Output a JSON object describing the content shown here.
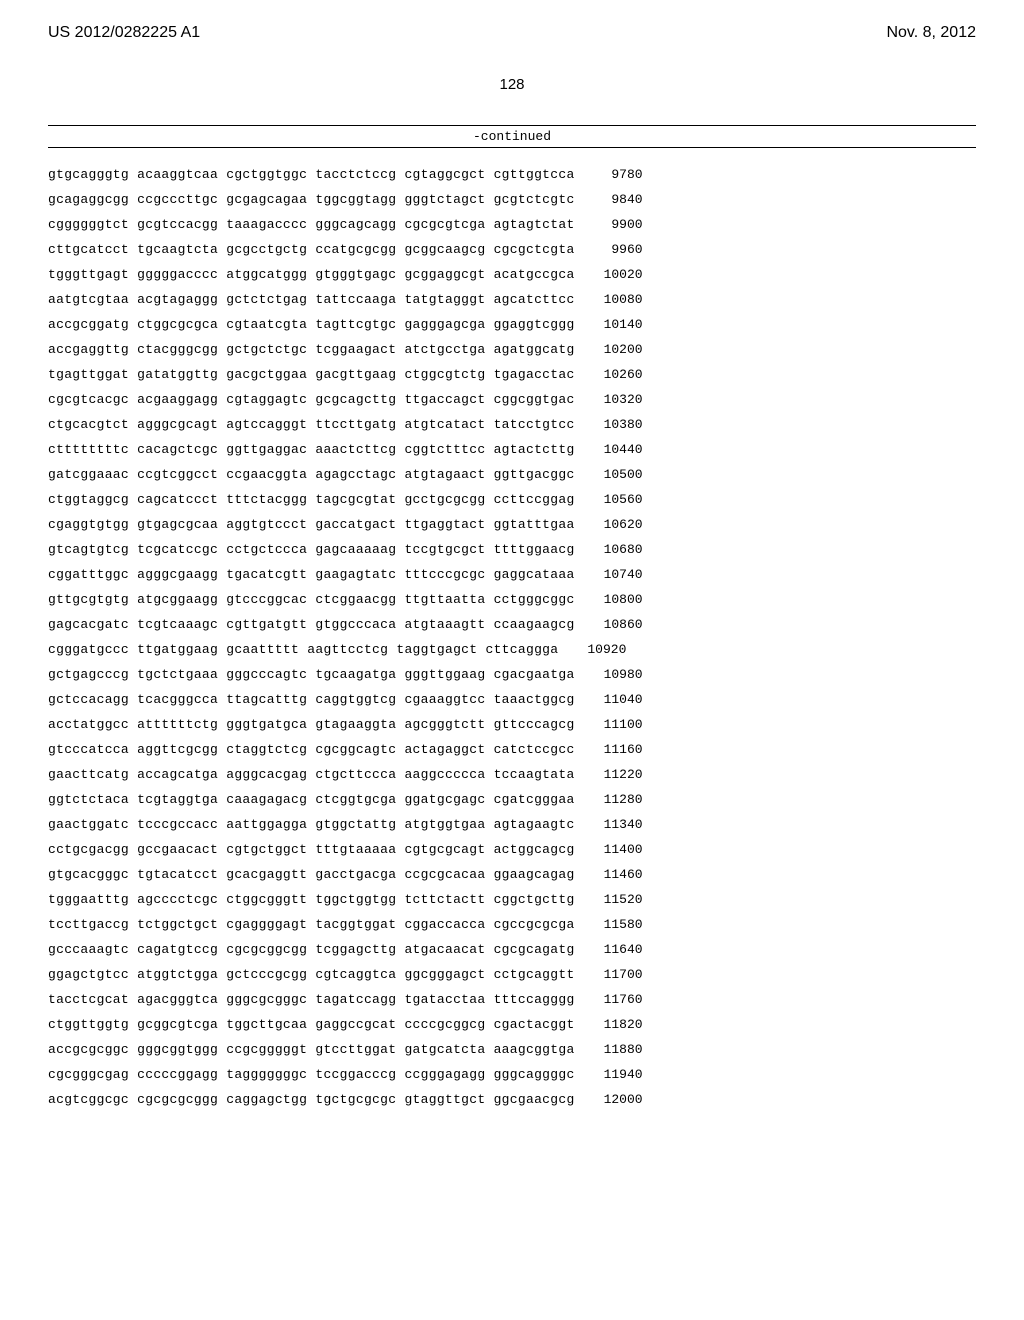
{
  "header": {
    "patent_number": "US 2012/0282225 A1",
    "patent_date": "Nov. 8, 2012"
  },
  "page_number": "128",
  "continued_label": "-continued",
  "colors": {
    "background": "#ffffff",
    "text": "#000000",
    "rule": "#000000"
  },
  "typography": {
    "header_font": "Arial, Helvetica, sans-serif",
    "header_fontsize": 16,
    "page_number_fontsize": 15,
    "sequence_font": "Courier New, Courier, monospace",
    "sequence_fontsize": 13,
    "continued_fontsize": 13
  },
  "sequence": {
    "block_count_per_row": 6,
    "block_length": 10,
    "rows": [
      {
        "blocks": [
          "gtgcagggtg",
          "acaaggtcaa",
          "cgctggtggc",
          "tacctctccg",
          "cgtaggcgct",
          "cgttggtcca"
        ],
        "pos": "9780"
      },
      {
        "blocks": [
          "gcagaggcgg",
          "ccgcccttgc",
          "gcgagcagaa",
          "tggcggtagg",
          "gggtctagct",
          "gcgtctcgtc"
        ],
        "pos": "9840"
      },
      {
        "blocks": [
          "cggggggtct",
          "gcgtccacgg",
          "taaagacccc",
          "gggcagcagg",
          "cgcgcgtcga",
          "agtagtctat"
        ],
        "pos": "9900"
      },
      {
        "blocks": [
          "cttgcatcct",
          "tgcaagtcta",
          "gcgcctgctg",
          "ccatgcgcgg",
          "gcggcaagcg",
          "cgcgctcgta"
        ],
        "pos": "9960"
      },
      {
        "blocks": [
          "tgggttgagt",
          "gggggacccc",
          "atggcatggg",
          "gtgggtgagc",
          "gcggaggcgt",
          "acatgccgca"
        ],
        "pos": "10020"
      },
      {
        "blocks": [
          "aatgtcgtaa",
          "acgtagaggg",
          "gctctctgag",
          "tattccaaga",
          "tatgtagggt",
          "agcatcttcc"
        ],
        "pos": "10080"
      },
      {
        "blocks": [
          "accgcggatg",
          "ctggcgcgca",
          "cgtaatcgta",
          "tagttcgtgc",
          "gagggagcga",
          "ggaggtcggg"
        ],
        "pos": "10140"
      },
      {
        "blocks": [
          "accgaggttg",
          "ctacgggcgg",
          "gctgctctgc",
          "tcggaagact",
          "atctgcctga",
          "agatggcatg"
        ],
        "pos": "10200"
      },
      {
        "blocks": [
          "tgagttggat",
          "gatatggttg",
          "gacgctggaa",
          "gacgttgaag",
          "ctggcgtctg",
          "tgagacctac"
        ],
        "pos": "10260"
      },
      {
        "blocks": [
          "cgcgtcacgc",
          "acgaaggagg",
          "cgtaggagtc",
          "gcgcagcttg",
          "ttgaccagct",
          "cggcggtgac"
        ],
        "pos": "10320"
      },
      {
        "blocks": [
          "ctgcacgtct",
          "agggcgcagt",
          "agtccagggt",
          "ttccttgatg",
          "atgtcatact",
          "tatcctgtcc"
        ],
        "pos": "10380"
      },
      {
        "blocks": [
          "cttttttttc",
          "cacagctcgc",
          "ggttgaggac",
          "aaactcttcg",
          "cggtctttcc",
          "agtactcttg"
        ],
        "pos": "10440"
      },
      {
        "blocks": [
          "gatcggaaac",
          "ccgtcggcct",
          "ccgaacggta",
          "agagcctagc",
          "atgtagaact",
          "ggttgacggc"
        ],
        "pos": "10500"
      },
      {
        "blocks": [
          "ctggtaggcg",
          "cagcatccct",
          "tttctacggg",
          "tagcgcgtat",
          "gcctgcgcgg",
          "ccttccggag"
        ],
        "pos": "10560"
      },
      {
        "blocks": [
          "cgaggtgtgg",
          "gtgagcgcaa",
          "aggtgtccct",
          "gaccatgact",
          "ttgaggtact",
          "ggtatttgaa"
        ],
        "pos": "10620"
      },
      {
        "blocks": [
          "gtcagtgtcg",
          "tcgcatccgc",
          "cctgctccca",
          "gagcaaaaag",
          "tccgtgcgct",
          "ttttggaacg"
        ],
        "pos": "10680"
      },
      {
        "blocks": [
          "cggatttggc",
          "agggcgaagg",
          "tgacatcgtt",
          "gaagagtatc",
          "tttcccgcgc",
          "gaggcataaa"
        ],
        "pos": "10740"
      },
      {
        "blocks": [
          "gttgcgtgtg",
          "atgcggaagg",
          "gtcccggcac",
          "ctcggaacgg",
          "ttgttaatta",
          "cctgggcggc"
        ],
        "pos": "10800"
      },
      {
        "blocks": [
          "gagcacgatc",
          "tcgtcaaagc",
          "cgttgatgtt",
          "gtggcccaca",
          "atgtaaagtt",
          "ccaagaagcg"
        ],
        "pos": "10860"
      },
      {
        "blocks": [
          "cgggatgccc",
          "ttgatggaag",
          "gcaattttt",
          "aagttcctcg",
          "taggtgagct",
          "cttcaggga"
        ],
        "pos": "10920"
      },
      {
        "blocks": [
          "gctgagcccg",
          "tgctctgaaa",
          "gggcccagtc",
          "tgcaagatga",
          "gggttggaag",
          "cgacgaatga"
        ],
        "pos": "10980"
      },
      {
        "blocks": [
          "gctccacagg",
          "tcacgggcca",
          "ttagcatttg",
          "caggtggtcg",
          "cgaaaggtcc",
          "taaactggcg"
        ],
        "pos": "11040"
      },
      {
        "blocks": [
          "acctatggcc",
          "attttttctg",
          "gggtgatgca",
          "gtagaaggta",
          "agcgggtctt",
          "gttcccagcg"
        ],
        "pos": "11100"
      },
      {
        "blocks": [
          "gtcccatcca",
          "aggttcgcgg",
          "ctaggtctcg",
          "cgcggcagtc",
          "actagaggct",
          "catctccgcc"
        ],
        "pos": "11160"
      },
      {
        "blocks": [
          "gaacttcatg",
          "accagcatga",
          "agggcacgag",
          "ctgcttccca",
          "aaggccccca",
          "tccaagtata"
        ],
        "pos": "11220"
      },
      {
        "blocks": [
          "ggtctctaca",
          "tcgtaggtga",
          "caaagagacg",
          "ctcggtgcga",
          "ggatgcgagc",
          "cgatcgggaa"
        ],
        "pos": "11280"
      },
      {
        "blocks": [
          "gaactggatc",
          "tcccgccacc",
          "aattggagga",
          "gtggctattg",
          "atgtggtgaa",
          "agtagaagtc"
        ],
        "pos": "11340"
      },
      {
        "blocks": [
          "cctgcgacgg",
          "gccgaacact",
          "cgtgctggct",
          "tttgtaaaaa",
          "cgtgcgcagt",
          "actggcagcg"
        ],
        "pos": "11400"
      },
      {
        "blocks": [
          "gtgcacgggc",
          "tgtacatcct",
          "gcacgaggtt",
          "gacctgacga",
          "ccgcgcacaa",
          "ggaagcagag"
        ],
        "pos": "11460"
      },
      {
        "blocks": [
          "tgggaatttg",
          "agcccctcgc",
          "ctggcgggtt",
          "tggctggtgg",
          "tcttctactt",
          "cggctgcttg"
        ],
        "pos": "11520"
      },
      {
        "blocks": [
          "tccttgaccg",
          "tctggctgct",
          "cgaggggagt",
          "tacggtggat",
          "cggaccacca",
          "cgccgcgcga"
        ],
        "pos": "11580"
      },
      {
        "blocks": [
          "gcccaaagtc",
          "cagatgtccg",
          "cgcgcggcgg",
          "tcggagcttg",
          "atgacaacat",
          "cgcgcagatg"
        ],
        "pos": "11640"
      },
      {
        "blocks": [
          "ggagctgtcc",
          "atggtctgga",
          "gctcccgcgg",
          "cgtcaggtca",
          "ggcgggagct",
          "cctgcaggtt"
        ],
        "pos": "11700"
      },
      {
        "blocks": [
          "tacctcgcat",
          "agacgggtca",
          "gggcgcgggc",
          "tagatccagg",
          "tgatacctaa",
          "tttccagggg"
        ],
        "pos": "11760"
      },
      {
        "blocks": [
          "ctggttggtg",
          "gcggcgtcga",
          "tggcttgcaa",
          "gaggccgcat",
          "ccccgcggcg",
          "cgactacggt"
        ],
        "pos": "11820"
      },
      {
        "blocks": [
          "accgcgcggc",
          "gggcggtggg",
          "ccgcgggggt",
          "gtccttggat",
          "gatgcatcta",
          "aaagcggtga"
        ],
        "pos": "11880"
      },
      {
        "blocks": [
          "cgcgggcgag",
          "cccccggagg",
          "tagggggggc",
          "tccggacccg",
          "ccgggagagg",
          "gggcaggggc"
        ],
        "pos": "11940"
      },
      {
        "blocks": [
          "acgtcggcgc",
          "cgcgcgcggg",
          "caggagctgg",
          "tgctgcgcgc",
          "gtaggttgct",
          "ggcgaacgcg"
        ],
        "pos": "12000"
      }
    ]
  }
}
